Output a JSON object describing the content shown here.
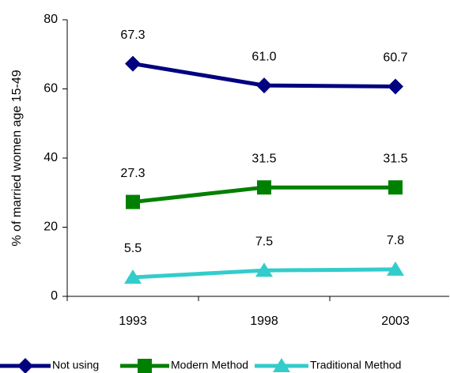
{
  "chart_data": {
    "type": "line",
    "y_label": "% of married women age 15-49",
    "categories": [
      "1993",
      "1998",
      "2003"
    ],
    "series": [
      {
        "name": "Not using",
        "color": "#000080",
        "marker": "diamond",
        "values": [
          67.3,
          61.0,
          60.7
        ],
        "value_labels": [
          "67.3",
          "61.0",
          "60.7"
        ]
      },
      {
        "name": "Modern Method",
        "color": "#008000",
        "marker": "square",
        "values": [
          27.3,
          31.5,
          31.5
        ],
        "value_labels": [
          "27.3",
          "31.5",
          "31.5"
        ]
      },
      {
        "name": "Traditional Method",
        "color": "#33cccc",
        "marker": "triangle",
        "values": [
          5.5,
          7.5,
          7.8
        ],
        "value_labels": [
          "5.5",
          "7.5",
          "7.8"
        ]
      }
    ],
    "ylim": [
      0,
      80
    ],
    "yticks": [
      0,
      20,
      40,
      60,
      80
    ],
    "grid": false,
    "legend": "bottom"
  }
}
